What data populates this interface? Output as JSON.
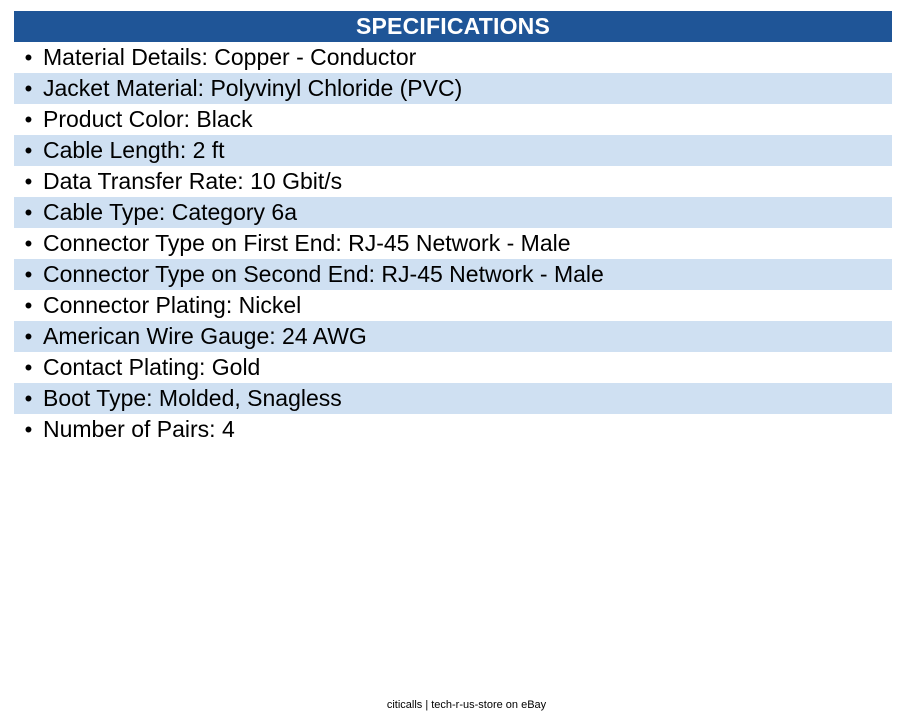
{
  "header": {
    "title": "SPECIFICATIONS"
  },
  "colors": {
    "header_background": "#1f5597",
    "header_text": "#ffffff",
    "shaded_row": "#cfe0f2"
  },
  "bullet_symbol": "•",
  "specs": [
    "Material Details: Copper - Conductor",
    "Jacket Material: Polyvinyl Chloride (PVC)",
    "Product Color: Black",
    "Cable Length: 2 ft",
    "Data Transfer Rate: 10 Gbit/s",
    "Cable Type: Category 6a",
    "Connector Type on First End: RJ-45 Network - Male",
    "Connector Type on Second End: RJ-45 Network - Male",
    "Connector Plating: Nickel",
    "American Wire Gauge: 24 AWG",
    "Contact Plating: Gold",
    "Boot Type: Molded, Snagless",
    "Number of Pairs: 4"
  ],
  "footer": {
    "text": "citicalls | tech-r-us-store on eBay"
  }
}
